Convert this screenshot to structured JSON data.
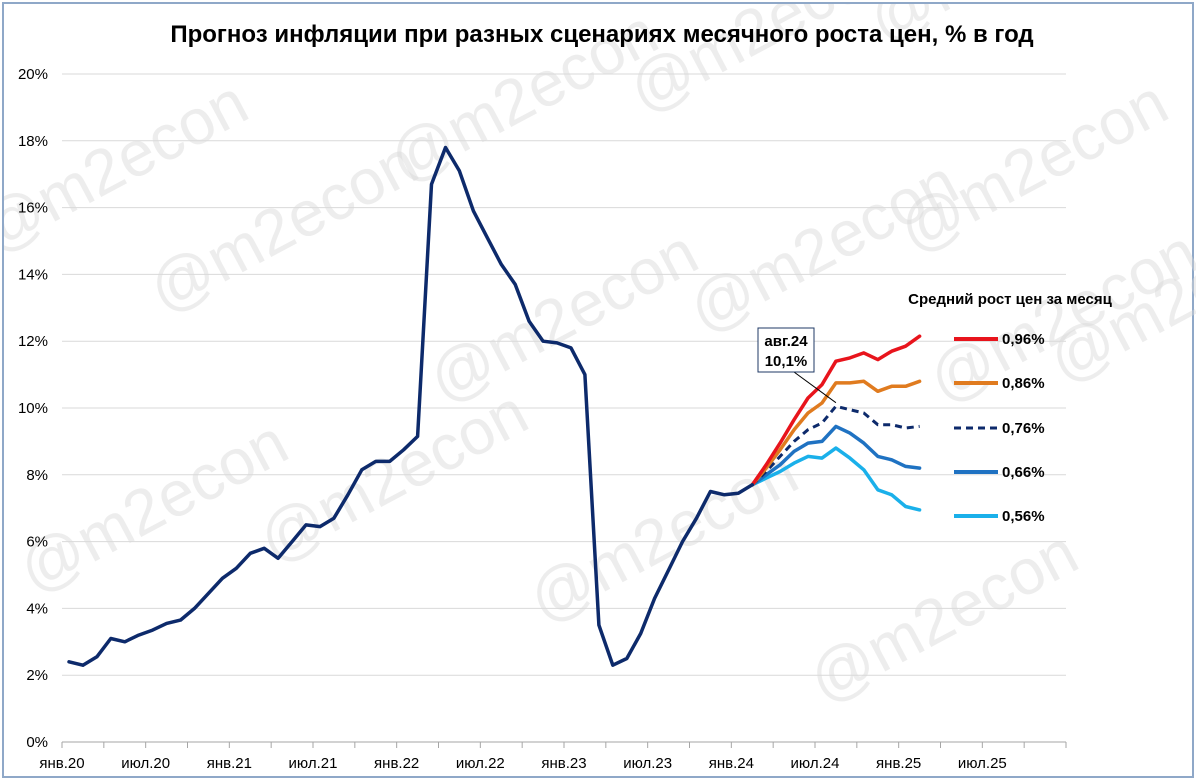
{
  "watermark": "@m2econ",
  "chart_data": {
    "type": "line",
    "title": "Прогноз инфляции при разных сценариях месячного роста цен, % в год",
    "y_ticks": [
      "0%",
      "2%",
      "4%",
      "6%",
      "8%",
      "10%",
      "12%",
      "14%",
      "16%",
      "18%",
      "20%"
    ],
    "ylim": [
      0,
      20
    ],
    "x_ticks": [
      "янв.20",
      "июл.20",
      "янв.21",
      "июл.21",
      "янв.22",
      "июл.22",
      "янв.23",
      "июл.23",
      "янв.24",
      "июл.24",
      "янв.25",
      "июл.25"
    ],
    "x_range": [
      "янв.20",
      "янв.26"
    ],
    "grid": "horizontal",
    "legend_title": "Средний рост цен за месяц",
    "legend_position": "right",
    "callout": {
      "line1": "авг.24",
      "line2": "10,1%",
      "x": "авг.24",
      "y": 10.1
    },
    "history": {
      "color": "#0d2a6b",
      "start": "янв.20",
      "values": [
        2.4,
        2.3,
        2.55,
        3.1,
        3.0,
        3.2,
        3.35,
        3.55,
        3.65,
        4.0,
        4.45,
        4.9,
        5.2,
        5.65,
        5.8,
        5.5,
        6.0,
        6.5,
        6.45,
        6.7,
        7.4,
        8.15,
        8.4,
        8.4,
        8.75,
        9.15,
        16.7,
        17.8,
        17.1,
        15.9,
        15.1,
        14.3,
        13.7,
        12.6,
        12.0,
        11.95,
        11.8,
        11.0,
        3.5,
        2.3,
        2.5,
        3.25,
        4.3,
        5.15,
        6.0,
        6.7,
        7.5,
        7.4,
        7.45,
        7.7
      ]
    },
    "series": [
      {
        "name": "0,96%",
        "color": "#e8141c",
        "dash": false,
        "start": "фев.24",
        "values": [
          7.7,
          8.3,
          8.95,
          9.65,
          10.3,
          10.7,
          11.4,
          11.5,
          11.65,
          11.45,
          11.7,
          11.85,
          12.15
        ]
      },
      {
        "name": "0,86%",
        "color": "#e07b1f",
        "dash": false,
        "start": "фев.24",
        "values": [
          7.7,
          8.2,
          8.75,
          9.35,
          9.85,
          10.15,
          10.75,
          10.75,
          10.8,
          10.5,
          10.65,
          10.65,
          10.8
        ]
      },
      {
        "name": "0,76%",
        "color": "#0d2a6b",
        "dash": true,
        "start": "фев.24",
        "values": [
          7.7,
          8.1,
          8.55,
          9.0,
          9.35,
          9.55,
          10.05,
          9.95,
          9.85,
          9.5,
          9.5,
          9.4,
          9.45
        ]
      },
      {
        "name": "0,66%",
        "color": "#1f72c2",
        "dash": false,
        "start": "фев.24",
        "values": [
          7.7,
          8.0,
          8.3,
          8.7,
          8.95,
          9.0,
          9.45,
          9.25,
          8.95,
          8.55,
          8.45,
          8.25,
          8.2
        ]
      },
      {
        "name": "0,56%",
        "color": "#1ab0ea",
        "dash": false,
        "start": "фев.24",
        "values": [
          7.7,
          7.9,
          8.1,
          8.35,
          8.55,
          8.5,
          8.8,
          8.5,
          8.15,
          7.55,
          7.4,
          7.05,
          6.95
        ]
      }
    ]
  }
}
